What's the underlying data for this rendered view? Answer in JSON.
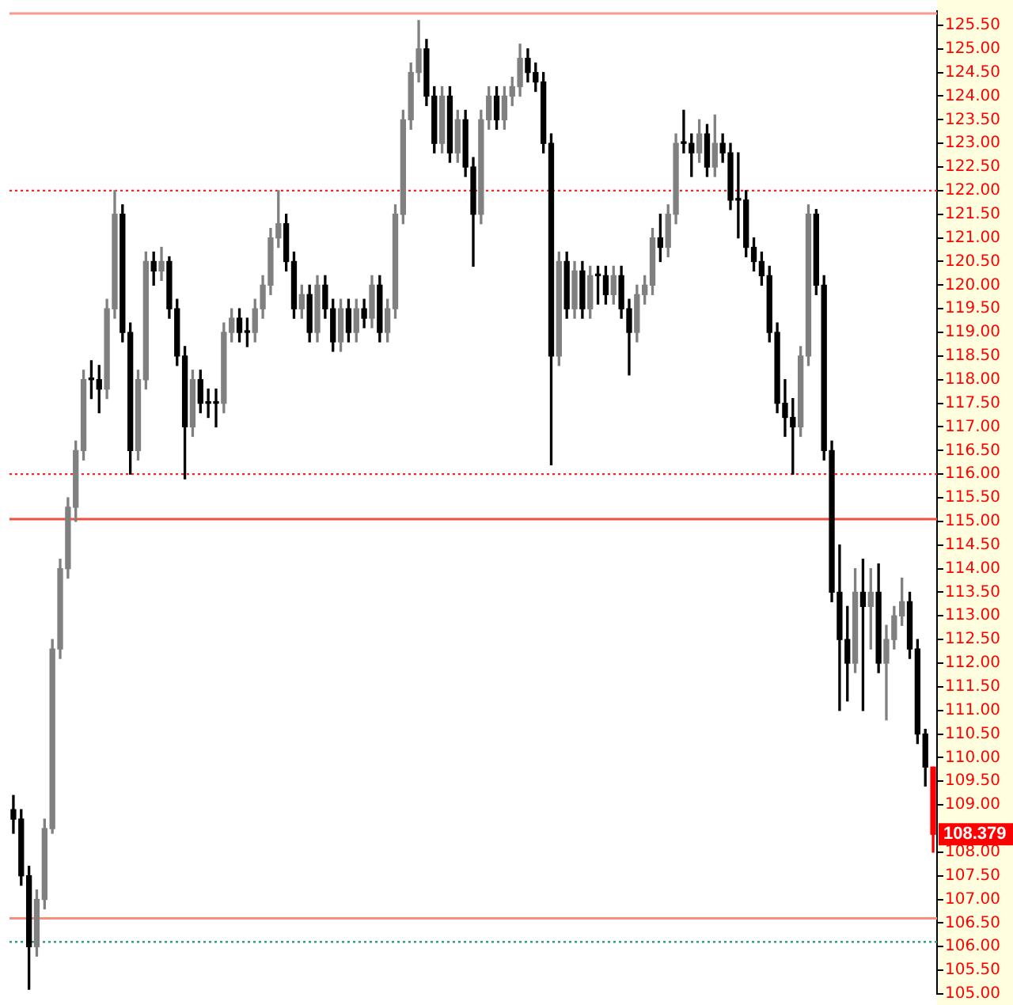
{
  "chart_data": {
    "type": "candlestick",
    "categories": [
      null,
      null,
      null,
      null,
      null,
      null,
      null,
      null,
      null,
      null,
      null,
      null,
      null,
      null,
      null,
      null,
      null,
      null,
      null,
      null,
      null,
      null,
      null,
      null,
      null,
      null,
      null,
      null,
      null,
      null,
      null,
      null,
      null,
      null,
      null,
      null,
      null,
      null,
      null,
      null,
      null,
      null,
      null,
      null,
      null,
      null,
      null,
      null,
      null,
      null,
      null,
      null,
      null,
      null,
      null,
      null,
      null,
      null,
      null,
      null,
      null,
      null,
      null,
      null,
      null,
      null,
      null,
      null,
      null,
      null,
      null,
      null,
      null,
      null,
      null,
      null,
      null,
      null,
      null,
      null,
      null,
      null,
      null,
      null,
      null,
      null,
      null,
      null,
      null,
      null,
      null,
      null,
      null,
      null,
      null,
      null,
      null,
      null,
      null,
      null,
      null,
      null,
      null,
      null,
      null,
      null,
      null,
      null,
      null,
      null,
      null,
      null,
      null,
      null,
      null,
      null,
      null,
      null,
      null
    ],
    "ohlc": [
      [
        108.9,
        109.2,
        108.4,
        108.7
      ],
      [
        108.7,
        108.9,
        107.3,
        107.5
      ],
      [
        107.5,
        107.7,
        105.1,
        106.0
      ],
      [
        106.0,
        107.2,
        105.8,
        107.0
      ],
      [
        107.0,
        108.7,
        106.8,
        108.5
      ],
      [
        108.5,
        112.5,
        108.4,
        112.3
      ],
      [
        112.3,
        114.2,
        112.1,
        114.0
      ],
      [
        114.0,
        115.5,
        113.8,
        115.3
      ],
      [
        115.3,
        116.7,
        115.0,
        116.5
      ],
      [
        116.5,
        118.2,
        116.3,
        118.0
      ],
      [
        118.0,
        118.4,
        117.6,
        118.0
      ],
      [
        118.0,
        118.3,
        117.3,
        117.8
      ],
      [
        117.8,
        119.7,
        117.6,
        119.5
      ],
      [
        119.5,
        122.0,
        119.3,
        121.5
      ],
      [
        121.5,
        121.7,
        118.8,
        119.0
      ],
      [
        119.0,
        119.2,
        116.0,
        116.5
      ],
      [
        116.5,
        118.2,
        116.3,
        118.0
      ],
      [
        118.0,
        120.7,
        117.8,
        120.5
      ],
      [
        120.5,
        120.7,
        120.0,
        120.3
      ],
      [
        120.3,
        120.8,
        120.1,
        120.5
      ],
      [
        120.5,
        120.6,
        119.3,
        119.5
      ],
      [
        119.5,
        119.7,
        118.3,
        118.5
      ],
      [
        118.5,
        118.7,
        115.9,
        117.0
      ],
      [
        117.0,
        118.2,
        116.8,
        118.0
      ],
      [
        118.0,
        118.2,
        117.3,
        117.5
      ],
      [
        117.5,
        117.8,
        117.2,
        117.5
      ],
      [
        117.5,
        117.8,
        117.0,
        117.5
      ],
      [
        117.5,
        119.2,
        117.3,
        119.0
      ],
      [
        119.0,
        119.5,
        118.8,
        119.3
      ],
      [
        119.3,
        119.5,
        118.8,
        119.0
      ],
      [
        119.0,
        119.3,
        118.7,
        119.0
      ],
      [
        119.0,
        119.7,
        118.8,
        119.5
      ],
      [
        119.5,
        120.2,
        119.3,
        120.0
      ],
      [
        120.0,
        121.2,
        119.8,
        121.0
      ],
      [
        121.0,
        122.0,
        120.8,
        121.3
      ],
      [
        121.3,
        121.5,
        120.3,
        120.5
      ],
      [
        120.5,
        120.7,
        119.3,
        119.5
      ],
      [
        119.5,
        120.0,
        119.3,
        119.8
      ],
      [
        119.8,
        120.0,
        118.8,
        119.0
      ],
      [
        119.0,
        120.2,
        118.8,
        120.0
      ],
      [
        120.0,
        120.2,
        119.3,
        119.5
      ],
      [
        119.5,
        119.7,
        118.6,
        118.8
      ],
      [
        118.8,
        119.7,
        118.6,
        119.5
      ],
      [
        119.5,
        119.7,
        118.8,
        119.0
      ],
      [
        119.0,
        119.7,
        118.8,
        119.5
      ],
      [
        119.5,
        119.7,
        119.1,
        119.3
      ],
      [
        119.3,
        120.2,
        119.1,
        120.0
      ],
      [
        120.0,
        120.2,
        118.8,
        119.0
      ],
      [
        119.0,
        119.7,
        118.8,
        119.5
      ],
      [
        119.5,
        121.7,
        119.3,
        121.5
      ],
      [
        121.5,
        123.7,
        121.3,
        123.5
      ],
      [
        123.5,
        124.7,
        123.3,
        124.5
      ],
      [
        124.5,
        125.6,
        124.3,
        125.0
      ],
      [
        125.0,
        125.2,
        123.8,
        124.0
      ],
      [
        124.0,
        124.2,
        122.8,
        123.0
      ],
      [
        123.0,
        124.2,
        122.8,
        124.0
      ],
      [
        124.0,
        124.2,
        122.6,
        122.8
      ],
      [
        122.8,
        123.7,
        122.6,
        123.5
      ],
      [
        123.5,
        123.7,
        122.3,
        122.5
      ],
      [
        122.5,
        122.7,
        120.4,
        121.5
      ],
      [
        121.5,
        123.7,
        121.3,
        123.5
      ],
      [
        123.5,
        124.2,
        123.3,
        124.0
      ],
      [
        124.0,
        124.2,
        123.3,
        123.5
      ],
      [
        123.5,
        124.2,
        123.3,
        124.0
      ],
      [
        124.0,
        124.4,
        123.8,
        124.2
      ],
      [
        124.2,
        125.1,
        124.0,
        124.8
      ],
      [
        124.8,
        125.0,
        124.3,
        124.5
      ],
      [
        124.5,
        124.7,
        124.1,
        124.3
      ],
      [
        124.3,
        124.5,
        122.8,
        123.0
      ],
      [
        123.0,
        123.2,
        116.2,
        118.5
      ],
      [
        118.5,
        120.7,
        118.3,
        120.5
      ],
      [
        120.5,
        120.7,
        119.3,
        119.5
      ],
      [
        119.5,
        120.5,
        119.3,
        120.3
      ],
      [
        120.3,
        120.5,
        119.3,
        119.5
      ],
      [
        119.5,
        120.4,
        119.3,
        120.2
      ],
      [
        120.2,
        120.4,
        119.6,
        120.2
      ],
      [
        120.2,
        120.4,
        119.6,
        119.8
      ],
      [
        119.8,
        120.4,
        119.6,
        120.2
      ],
      [
        120.2,
        120.4,
        119.3,
        119.5
      ],
      [
        119.5,
        119.7,
        118.1,
        119.0
      ],
      [
        119.0,
        120.0,
        118.8,
        119.8
      ],
      [
        119.8,
        120.2,
        119.6,
        120.0
      ],
      [
        120.0,
        121.2,
        119.8,
        121.0
      ],
      [
        121.0,
        121.5,
        120.5,
        120.8
      ],
      [
        120.8,
        121.7,
        120.6,
        121.5
      ],
      [
        121.5,
        123.2,
        121.3,
        123.0
      ],
      [
        123.0,
        123.7,
        122.8,
        123.0
      ],
      [
        123.0,
        123.2,
        122.3,
        122.8
      ],
      [
        122.8,
        123.5,
        122.6,
        123.2
      ],
      [
        123.2,
        123.4,
        122.3,
        122.5
      ],
      [
        122.5,
        123.6,
        122.3,
        123.0
      ],
      [
        123.0,
        123.2,
        122.6,
        122.8
      ],
      [
        122.8,
        123.0,
        121.6,
        121.8
      ],
      [
        121.8,
        122.8,
        121.0,
        121.8
      ],
      [
        121.8,
        122.0,
        120.6,
        120.8
      ],
      [
        120.8,
        121.0,
        120.3,
        120.5
      ],
      [
        120.5,
        120.7,
        120.0,
        120.2
      ],
      [
        120.2,
        120.4,
        118.8,
        119.0
      ],
      [
        119.0,
        119.2,
        117.3,
        117.5
      ],
      [
        117.5,
        118.0,
        116.8,
        117.2
      ],
      [
        117.2,
        117.6,
        116.0,
        117.0
      ],
      [
        117.0,
        118.7,
        116.8,
        118.5
      ],
      [
        118.5,
        121.7,
        118.3,
        121.5
      ],
      [
        121.5,
        121.6,
        119.8,
        120.0
      ],
      [
        120.0,
        120.2,
        116.3,
        116.5
      ],
      [
        116.5,
        116.7,
        113.3,
        113.5
      ],
      [
        113.5,
        114.5,
        111.0,
        112.5
      ],
      [
        112.5,
        113.2,
        111.2,
        112.0
      ],
      [
        112.0,
        114.0,
        111.8,
        113.5
      ],
      [
        113.5,
        114.2,
        111.0,
        113.2
      ],
      [
        113.2,
        114.0,
        112.3,
        113.5
      ],
      [
        113.5,
        114.1,
        111.8,
        112.0
      ],
      [
        112.0,
        112.8,
        110.8,
        112.5
      ],
      [
        112.5,
        113.2,
        112.3,
        113.0
      ],
      [
        113.0,
        113.8,
        112.8,
        113.3
      ],
      [
        113.3,
        113.5,
        112.1,
        112.3
      ],
      [
        112.3,
        112.5,
        110.3,
        110.5
      ],
      [
        110.5,
        110.6,
        109.4,
        109.8
      ],
      [
        109.8,
        109.8,
        108.0,
        108.379
      ]
    ],
    "colors": [
      "#000000",
      "#000000",
      "#000000",
      "#808080",
      "#808080",
      "#808080",
      "#808080",
      "#808080",
      "#808080",
      "#808080",
      "#000000",
      "#000000",
      "#808080",
      "#808080",
      "#000000",
      "#000000",
      "#808080",
      "#808080",
      "#000000",
      "#808080",
      "#000000",
      "#000000",
      "#000000",
      "#808080",
      "#000000",
      "#000000",
      "#000000",
      "#808080",
      "#808080",
      "#000000",
      "#000000",
      "#808080",
      "#808080",
      "#808080",
      "#808080",
      "#000000",
      "#000000",
      "#808080",
      "#000000",
      "#808080",
      "#000000",
      "#000000",
      "#808080",
      "#000000",
      "#808080",
      "#000000",
      "#808080",
      "#000000",
      "#808080",
      "#808080",
      "#808080",
      "#808080",
      "#808080",
      "#000000",
      "#000000",
      "#808080",
      "#000000",
      "#808080",
      "#000000",
      "#000000",
      "#808080",
      "#808080",
      "#000000",
      "#808080",
      "#808080",
      "#808080",
      "#000000",
      "#000000",
      "#000000",
      "#000000",
      "#808080",
      "#000000",
      "#808080",
      "#000000",
      "#808080",
      "#000000",
      "#000000",
      "#808080",
      "#000000",
      "#000000",
      "#808080",
      "#808080",
      "#808080",
      "#000000",
      "#808080",
      "#808080",
      "#000000",
      "#000000",
      "#808080",
      "#000000",
      "#808080",
      "#000000",
      "#000000",
      "#000000",
      "#000000",
      "#000000",
      "#000000",
      "#000000",
      "#000000",
      "#000000",
      "#000000",
      "#808080",
      "#808080",
      "#000000",
      "#000000",
      "#000000",
      "#000000",
      "#000000",
      "#808080",
      "#000000",
      "#808080",
      "#000000",
      "#808080",
      "#808080",
      "#808080",
      "#000000",
      "#000000",
      "#000000",
      "#ff0000"
    ],
    "ylim": [
      105,
      125.8
    ],
    "yticks": [
      {
        "value": 105,
        "label": "105.00"
      },
      {
        "value": 105.5,
        "label": "105.50"
      },
      {
        "value": 106,
        "label": "106.00"
      },
      {
        "value": 106.5,
        "label": "106.50"
      },
      {
        "value": 107,
        "label": "107.00"
      },
      {
        "value": 107.5,
        "label": "107.50"
      },
      {
        "value": 108,
        "label": "108.00"
      },
      {
        "value": 109,
        "label": "109.00"
      },
      {
        "value": 109.5,
        "label": "109.50"
      },
      {
        "value": 110,
        "label": "110.00"
      },
      {
        "value": 110.5,
        "label": "110.50"
      },
      {
        "value": 111,
        "label": "111.00"
      },
      {
        "value": 111.5,
        "label": "111.50"
      },
      {
        "value": 112,
        "label": "112.00"
      },
      {
        "value": 112.5,
        "label": "112.50"
      },
      {
        "value": 113,
        "label": "113.00"
      },
      {
        "value": 113.5,
        "label": "113.50"
      },
      {
        "value": 114,
        "label": "114.00"
      },
      {
        "value": 114.5,
        "label": "114.50"
      },
      {
        "value": 115,
        "label": "115.00"
      },
      {
        "value": 115.5,
        "label": "115.50"
      },
      {
        "value": 116,
        "label": "116.00"
      },
      {
        "value": 116.5,
        "label": "116.50"
      },
      {
        "value": 117,
        "label": "117.00"
      },
      {
        "value": 117.5,
        "label": "117.50"
      },
      {
        "value": 118,
        "label": "118.00"
      },
      {
        "value": 118.5,
        "label": "118.50"
      },
      {
        "value": 119,
        "label": "119.00"
      },
      {
        "value": 119.5,
        "label": "119.50"
      },
      {
        "value": 120,
        "label": "120.00"
      },
      {
        "value": 120.5,
        "label": "120.50"
      },
      {
        "value": 121,
        "label": "121.00"
      },
      {
        "value": 121.5,
        "label": "121.50"
      },
      {
        "value": 122,
        "label": "122.00"
      },
      {
        "value": 122.5,
        "label": "122.50"
      },
      {
        "value": 123,
        "label": "123.00"
      },
      {
        "value": 123.5,
        "label": "123.50"
      },
      {
        "value": 124,
        "label": "124.00"
      },
      {
        "value": 124.5,
        "label": "124.50"
      },
      {
        "value": 125,
        "label": "125.00"
      },
      {
        "value": 125.5,
        "label": "125.50"
      }
    ],
    "ref_lines": [
      {
        "axis": "y",
        "value": 125.75,
        "color": "#f49a90",
        "line_style": "solid"
      },
      {
        "axis": "y",
        "value": 122,
        "color": "#ff2020",
        "line_style": "dotted"
      },
      {
        "axis": "y",
        "value": 116,
        "color": "#ff2020",
        "line_style": "dotted"
      },
      {
        "axis": "y",
        "value": 115.05,
        "color": "#f05040",
        "line_style": "solid"
      },
      {
        "axis": "y",
        "value": 106.6,
        "color": "#f49080",
        "line_style": "solid"
      },
      {
        "axis": "y",
        "value": 106.1,
        "color": "#30a080",
        "line_style": "dotted"
      }
    ],
    "annotations": [
      "108.379"
    ],
    "tick_labels": "y",
    "grid": false,
    "legend": false
  }
}
